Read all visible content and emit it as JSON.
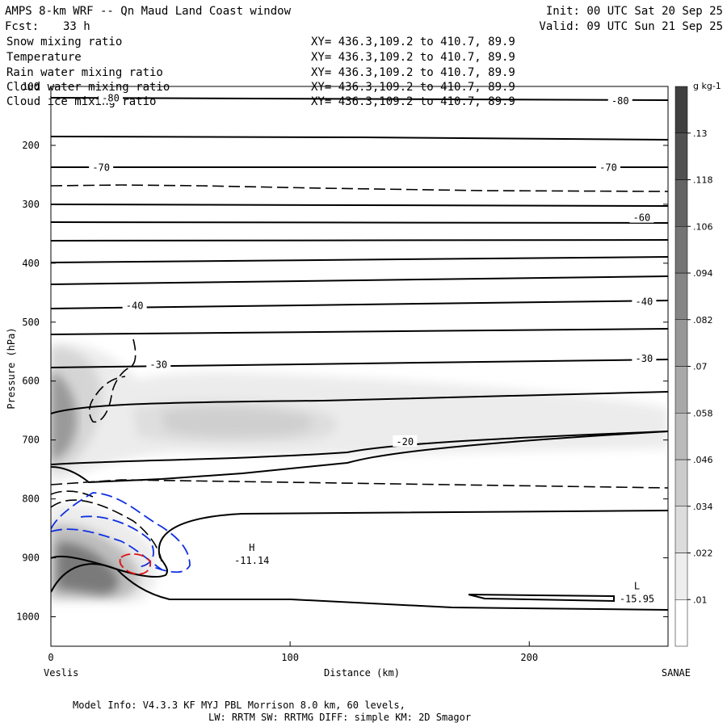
{
  "header": {
    "title": "AMPS 8-km WRF -- Qn Maud Land Coast window",
    "init": "Init: 00 UTC Sat 20 Sep 25",
    "fcst_label": "Fcst:",
    "fcst_value": "33 h",
    "valid": "Valid: 09 UTC Sun 21 Sep 25"
  },
  "fields": [
    {
      "name": "Snow mixing ratio",
      "xy": "XY= 436.3,109.2 to 410.7, 89.9",
      "color": "#000000"
    },
    {
      "name": "Temperature",
      "xy": "XY= 436.3,109.2 to 410.7, 89.9",
      "color": "#000000"
    },
    {
      "name": "Rain water mixing ratio",
      "xy": "XY= 436.3,109.2 to 410.7, 89.9",
      "color": "#e00000"
    },
    {
      "name": "Cloud water mixing ratio",
      "xy": "XY= 436.3,109.2 to 410.7, 89.9",
      "color": "#0000e0"
    },
    {
      "name": "Cloud ice mixing ratio",
      "xy": "XY= 436.3,109.2 to 410.7, 89.9",
      "color": "#000000"
    }
  ],
  "footer": {
    "line1": "Model Info: V4.3.3   KF     MYJ PBL  Morrison            8.0 km,  60 levels,",
    "line2": "LW: RRTM SW: RRTMG   DIFF: simple KM: 2D Smagor"
  },
  "chart_data": {
    "type": "cross-section contour",
    "xlabel": "Distance (km)",
    "ylabel": "Pressure (hPa)",
    "xlim": [
      0,
      258
    ],
    "ylim": [
      1050,
      100
    ],
    "x_ticks": [
      0,
      100,
      200
    ],
    "y_ticks": [
      100,
      200,
      300,
      400,
      500,
      600,
      700,
      800,
      900,
      1000
    ],
    "left_endpoint": "Veslis",
    "right_endpoint": "SANAE",
    "colorbar": {
      "unit": "g kg-1",
      "levels": [
        ".01",
        ".022",
        ".034",
        ".046",
        ".058",
        ".07",
        ".082",
        ".094",
        ".106",
        ".118",
        ".13"
      ]
    },
    "temperature_labels": [
      {
        "text": "-80",
        "x": 25,
        "p": 120
      },
      {
        "text": "-80",
        "x": 238,
        "p": 125
      },
      {
        "text": "-70",
        "x": 21,
        "p": 238
      },
      {
        "text": "-70",
        "x": 233,
        "p": 238
      },
      {
        "text": "-60",
        "x": 247,
        "p": 323
      },
      {
        "text": "-40",
        "x": 35,
        "p": 472
      },
      {
        "text": "-40",
        "x": 248,
        "p": 465
      },
      {
        "text": "-30",
        "x": 45,
        "p": 572
      },
      {
        "text": "-30",
        "x": 248,
        "p": 562
      },
      {
        "text": "-20",
        "x": 148,
        "p": 703
      }
    ],
    "extrema": [
      {
        "kind": "H",
        "value": "-11.14",
        "x": 84,
        "p": 910
      },
      {
        "kind": "L",
        "value": "-15.95",
        "x": 245,
        "p": 975
      }
    ]
  }
}
